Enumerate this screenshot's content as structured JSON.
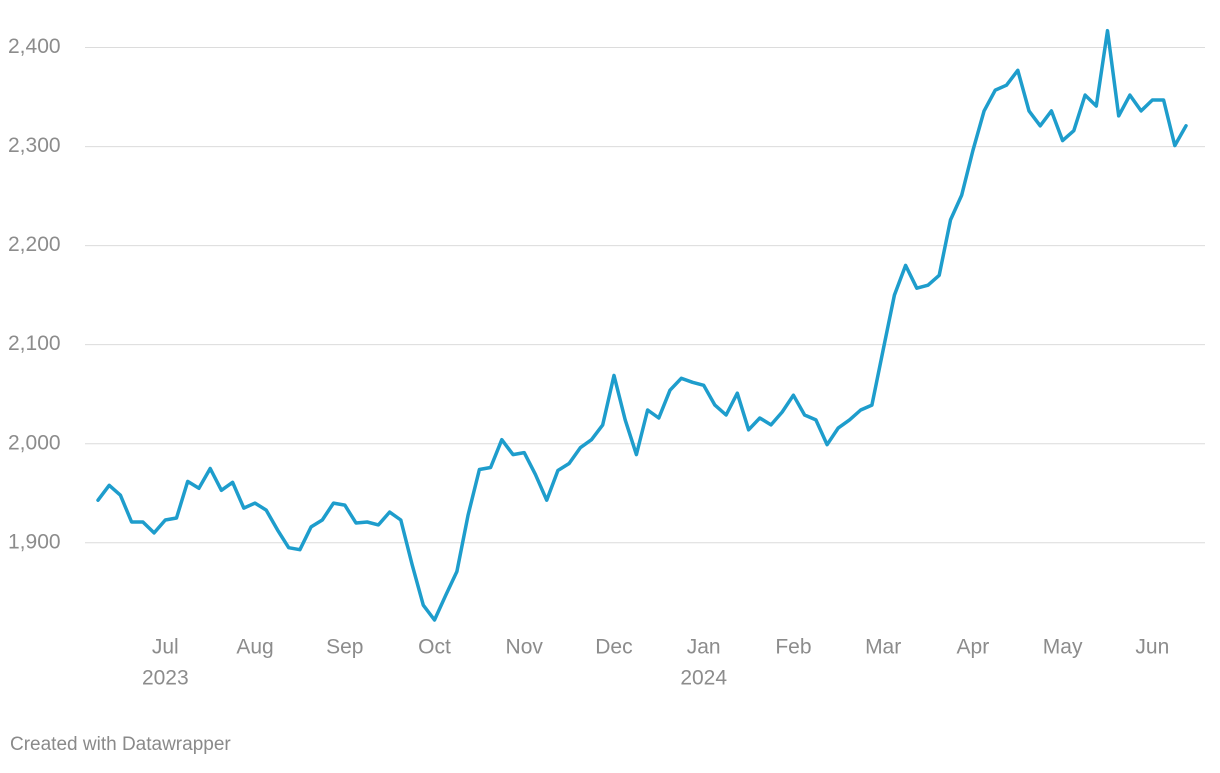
{
  "chart_data": {
    "type": "line",
    "categories": [
      null,
      null,
      null,
      null,
      null,
      null,
      "Jul",
      null,
      null,
      null,
      null,
      null,
      null,
      null,
      "Aug",
      null,
      null,
      null,
      null,
      null,
      null,
      null,
      "Sep",
      null,
      null,
      null,
      null,
      null,
      null,
      null,
      "Oct",
      null,
      null,
      null,
      null,
      null,
      null,
      null,
      "Nov",
      null,
      null,
      null,
      null,
      null,
      null,
      null,
      "Dec",
      null,
      null,
      null,
      null,
      null,
      null,
      null,
      "Jan",
      null,
      null,
      null,
      null,
      null,
      null,
      null,
      "Feb",
      null,
      null,
      null,
      null,
      null,
      null,
      null,
      "Mar",
      null,
      null,
      null,
      null,
      null,
      null,
      null,
      "Apr",
      null,
      null,
      null,
      null,
      null,
      null,
      null,
      "May",
      null,
      null,
      null,
      null,
      null,
      null,
      null,
      "Jun",
      null,
      null,
      null
    ],
    "x_sublabels": [
      null,
      null,
      null,
      null,
      null,
      null,
      "2023",
      null,
      null,
      null,
      null,
      null,
      null,
      null,
      null,
      null,
      null,
      null,
      null,
      null,
      null,
      null,
      null,
      null,
      null,
      null,
      null,
      null,
      null,
      null,
      null,
      null,
      null,
      null,
      null,
      null,
      null,
      null,
      null,
      null,
      null,
      null,
      null,
      null,
      null,
      null,
      null,
      null,
      null,
      null,
      null,
      null,
      null,
      null,
      "2024",
      null,
      null,
      null,
      null,
      null,
      null,
      null,
      null,
      null,
      null,
      null,
      null,
      null,
      null,
      null,
      null,
      null,
      null,
      null,
      null,
      null,
      null,
      null,
      null,
      null,
      null,
      null,
      null,
      null,
      null,
      null,
      null,
      null,
      null,
      null,
      null,
      null,
      null,
      null,
      null,
      null,
      null,
      null
    ],
    "values": [
      1943,
      1958,
      1948,
      1921,
      1921,
      1910,
      1923,
      1925,
      1962,
      1955,
      1975,
      1953,
      1961,
      1935,
      1940,
      1933,
      1913,
      1895,
      1893,
      1916,
      1923,
      1940,
      1938,
      1920,
      1921,
      1918,
      1931,
      1923,
      1878,
      1837,
      1822,
      1847,
      1871,
      1928,
      1974,
      1976,
      2004,
      1989,
      1991,
      1969,
      1943,
      1973,
      1980,
      1996,
      2004,
      2019,
      2069,
      2024,
      1989,
      2034,
      2026,
      2054,
      2066,
      2062,
      2059,
      2039,
      2029,
      2051,
      2014,
      2026,
      2019,
      2032,
      2049,
      2029,
      2024,
      1999,
      2016,
      2024,
      2034,
      2039,
      2095,
      2150,
      2180,
      2157,
      2160,
      2170,
      2226,
      2251,
      2296,
      2336,
      2357,
      2362,
      2377,
      2336,
      2321,
      2336,
      2306,
      2316,
      2352,
      2341,
      2417,
      2331,
      2352,
      2336,
      2347,
      2347,
      2301,
      2321
    ],
    "color": "#1e9dcc",
    "ylim": [
      1820,
      2430
    ],
    "yticks": [
      {
        "value": 1900,
        "label": "1,900"
      },
      {
        "value": 2000,
        "label": "2,000"
      },
      {
        "value": 2100,
        "label": "2,100"
      },
      {
        "value": 2200,
        "label": "2,200"
      },
      {
        "value": 2300,
        "label": "2,300"
      },
      {
        "value": 2400,
        "label": "2,400"
      }
    ],
    "grid": true
  },
  "footer": "Created with Datawrapper"
}
